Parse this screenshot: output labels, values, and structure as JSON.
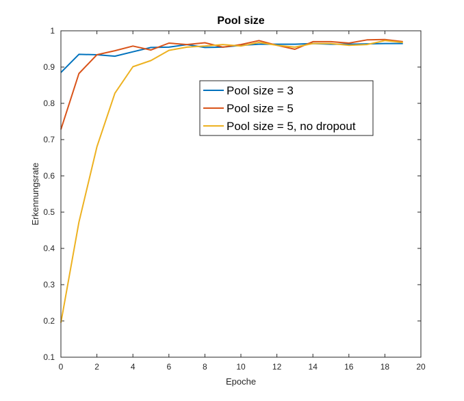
{
  "chart_data": {
    "type": "line",
    "title": "Pool size",
    "xlabel": "Epoche",
    "ylabel": "Erkennungsrate",
    "xlim": [
      0,
      20
    ],
    "ylim": [
      0.1,
      1
    ],
    "xticks": [
      0,
      2,
      4,
      6,
      8,
      10,
      12,
      14,
      16,
      18,
      20
    ],
    "yticks": [
      0.1,
      0.2,
      0.3,
      0.4,
      0.5,
      0.6,
      0.7,
      0.8,
      0.9,
      1
    ],
    "ytick_labels": [
      "0.1",
      "0.2",
      "0.3",
      "0.4",
      "0.5",
      "0.6",
      "0.7",
      "0.8",
      "0.9",
      "1"
    ],
    "grid": false,
    "legend_position": "upper-center",
    "x": [
      0,
      1,
      2,
      3,
      4,
      5,
      6,
      7,
      8,
      9,
      10,
      11,
      12,
      13,
      14,
      15,
      16,
      17,
      18,
      19
    ],
    "series": [
      {
        "name": "Pool size = 3",
        "color": "#0072BD",
        "values": [
          0.885,
          0.935,
          0.934,
          0.93,
          0.942,
          0.954,
          0.955,
          0.962,
          0.954,
          0.955,
          0.96,
          0.963,
          0.963,
          0.963,
          0.965,
          0.963,
          0.963,
          0.964,
          0.965,
          0.965
        ]
      },
      {
        "name": "Pool size = 5",
        "color": "#D95319",
        "values": [
          0.728,
          0.882,
          0.934,
          0.945,
          0.958,
          0.947,
          0.966,
          0.962,
          0.967,
          0.955,
          0.962,
          0.973,
          0.96,
          0.949,
          0.97,
          0.97,
          0.966,
          0.975,
          0.976,
          0.97
        ]
      },
      {
        "name": "Pool size = 5, no dropout",
        "color": "#EDB120",
        "values": [
          0.195,
          0.472,
          0.68,
          0.828,
          0.901,
          0.918,
          0.946,
          0.955,
          0.958,
          0.962,
          0.958,
          0.968,
          0.96,
          0.955,
          0.965,
          0.965,
          0.96,
          0.962,
          0.973,
          0.968
        ]
      }
    ]
  }
}
